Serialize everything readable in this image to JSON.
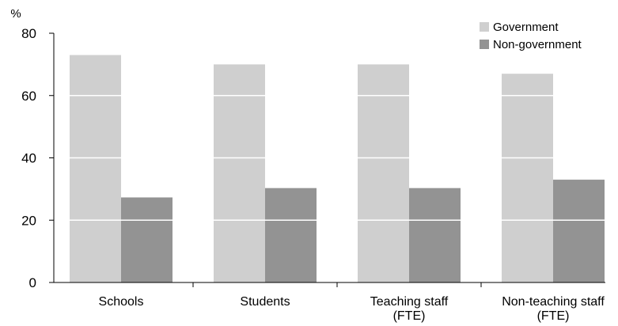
{
  "chart_data": {
    "type": "bar",
    "categories": [
      [
        "Schools"
      ],
      [
        "Students"
      ],
      [
        "Teaching staff",
        "(FTE)"
      ],
      [
        "Non-teaching staff",
        "(FTE)"
      ]
    ],
    "series": [
      {
        "name": "Government",
        "values": [
          73,
          70,
          70,
          67
        ],
        "color": "#cfcfcf"
      },
      {
        "name": "Non-government",
        "values": [
          27.3,
          30.3,
          30.3,
          33
        ],
        "color": "#939393"
      }
    ],
    "ylabel": "%",
    "ylim": [
      0,
      80
    ],
    "yticks": [
      0,
      20,
      40,
      60,
      80
    ],
    "gridlines": true,
    "gridline_color": "#ffffff",
    "legend_position": "top-right"
  }
}
